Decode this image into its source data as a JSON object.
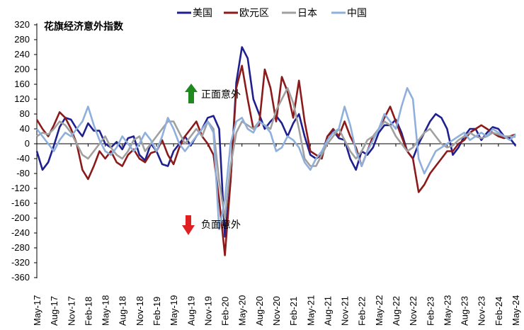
{
  "chart_data": {
    "type": "line",
    "title": "花旗经济意外指数",
    "xlabel": "",
    "ylabel": "",
    "ylim": [
      -360,
      320
    ],
    "yticks": [
      320,
      280,
      240,
      200,
      160,
      120,
      80,
      40,
      0,
      -40,
      -80,
      -120,
      -160,
      -200,
      -240,
      -280,
      -320,
      -360
    ],
    "x_tick_labels": [
      "May-17",
      "Aug-17",
      "Nov-17",
      "Feb-18",
      "May-18",
      "Aug-18",
      "Nov-18",
      "Feb-19",
      "May-19",
      "Aug-19",
      "Nov-19",
      "Feb-20",
      "May-20",
      "Aug-20",
      "Nov-20",
      "Feb-21",
      "May-21",
      "Aug-21",
      "Nov-21",
      "Feb-22",
      "May-22",
      "Aug-22",
      "Nov-22",
      "Feb-23",
      "May-23",
      "Aug-23",
      "Nov-23",
      "Feb-24",
      "May-24"
    ],
    "x_unit": "month index from May-17",
    "grid": false,
    "legend_position": "top",
    "annotations": [
      {
        "text": "正面意外",
        "arrow": "up",
        "color": "#1e8a1e"
      },
      {
        "text": "负面意外",
        "arrow": "down",
        "color": "#e02020"
      }
    ],
    "series": [
      {
        "name": "美国",
        "color": "#1f1f8f",
        "x": [
          0,
          1,
          2,
          3,
          4,
          5,
          6,
          7,
          8,
          9,
          10,
          11,
          12,
          13,
          14,
          15,
          16,
          17,
          18,
          19,
          20,
          21,
          22,
          23,
          24,
          25,
          26,
          27,
          28,
          29,
          30,
          31,
          32,
          33,
          34,
          35,
          36,
          37,
          38,
          39,
          40,
          41,
          42,
          43,
          44,
          45,
          46,
          47,
          48,
          49,
          50,
          51,
          52,
          53,
          54,
          55,
          56,
          57,
          58,
          59,
          60,
          61,
          62,
          63,
          64,
          65,
          66,
          67,
          68,
          69,
          70,
          71,
          72,
          73,
          74,
          75,
          76,
          77,
          78,
          79,
          80,
          81,
          82,
          83,
          84
        ],
        "values": [
          -20,
          -70,
          -50,
          -5,
          45,
          70,
          65,
          40,
          20,
          55,
          35,
          35,
          0,
          -10,
          5,
          -15,
          15,
          20,
          -30,
          -45,
          0,
          -20,
          -55,
          -60,
          -20,
          0,
          20,
          -5,
          20,
          40,
          70,
          75,
          40,
          -250,
          -100,
          165,
          260,
          230,
          120,
          80,
          40,
          60,
          75,
          55,
          20,
          55,
          80,
          20,
          -30,
          -40,
          -30,
          20,
          35,
          15,
          10,
          -40,
          -70,
          -20,
          -30,
          -10,
          30,
          50,
          50,
          65,
          30,
          -20,
          -40,
          0,
          30,
          60,
          80,
          70,
          40,
          -30,
          -10,
          20,
          40,
          40,
          10,
          30,
          45,
          40,
          20,
          15,
          -5
        ]
      },
      {
        "name": "欧元区",
        "color": "#8b1a1a",
        "x": [
          0,
          1,
          2,
          3,
          4,
          5,
          6,
          7,
          8,
          9,
          10,
          11,
          12,
          13,
          14,
          15,
          16,
          17,
          18,
          19,
          20,
          21,
          22,
          23,
          24,
          25,
          26,
          27,
          28,
          29,
          30,
          31,
          32,
          33,
          34,
          35,
          36,
          37,
          38,
          39,
          40,
          41,
          42,
          43,
          44,
          45,
          46,
          47,
          48,
          49,
          50,
          51,
          52,
          53,
          54,
          55,
          56,
          57,
          58,
          59,
          60,
          61,
          62,
          63,
          64,
          65,
          66,
          67,
          68,
          69,
          70,
          71,
          72,
          73,
          74,
          75,
          76,
          77,
          78,
          79,
          80,
          81,
          82,
          83,
          84
        ],
        "values": [
          65,
          40,
          20,
          50,
          85,
          70,
          40,
          0,
          -70,
          -95,
          -60,
          -20,
          -40,
          -20,
          -50,
          -60,
          -30,
          -15,
          -40,
          -50,
          -25,
          -20,
          10,
          -30,
          -55,
          -10,
          20,
          40,
          60,
          20,
          0,
          -30,
          -150,
          -300,
          -100,
          150,
          210,
          120,
          40,
          50,
          200,
          150,
          60,
          180,
          140,
          70,
          170,
          60,
          -20,
          -30,
          -40,
          20,
          40,
          20,
          60,
          20,
          -10,
          -60,
          -20,
          20,
          40,
          70,
          100,
          60,
          20,
          -20,
          -40,
          -130,
          -110,
          -80,
          -60,
          -40,
          -20,
          -20,
          0,
          10,
          30,
          40,
          50,
          40,
          30,
          20,
          15,
          20,
          25
        ]
      },
      {
        "name": "日本",
        "color": "#a0a0a0",
        "x": [
          0,
          1,
          2,
          3,
          4,
          5,
          6,
          7,
          8,
          9,
          10,
          11,
          12,
          13,
          14,
          15,
          16,
          17,
          18,
          19,
          20,
          21,
          22,
          23,
          24,
          25,
          26,
          27,
          28,
          29,
          30,
          31,
          32,
          33,
          34,
          35,
          36,
          37,
          38,
          39,
          40,
          41,
          42,
          43,
          44,
          45,
          46,
          47,
          48,
          49,
          50,
          51,
          52,
          53,
          54,
          55,
          56,
          57,
          58,
          59,
          60,
          61,
          62,
          63,
          64,
          65,
          66,
          67,
          68,
          69,
          70,
          71,
          72,
          73,
          74,
          75,
          76,
          77,
          78,
          79,
          80,
          81,
          82,
          83,
          84
        ],
        "values": [
          20,
          30,
          25,
          40,
          60,
          50,
          30,
          0,
          -30,
          -40,
          -20,
          0,
          20,
          -10,
          -30,
          -40,
          -20,
          10,
          20,
          -20,
          0,
          20,
          40,
          60,
          60,
          30,
          0,
          20,
          40,
          20,
          60,
          40,
          -100,
          -200,
          -60,
          30,
          60,
          50,
          40,
          60,
          50,
          40,
          90,
          120,
          150,
          110,
          40,
          -40,
          -60,
          -60,
          -30,
          0,
          20,
          40,
          10,
          -20,
          -40,
          -20,
          10,
          20,
          40,
          60,
          50,
          20,
          0,
          -20,
          -10,
          10,
          30,
          40,
          20,
          0,
          -10,
          -5,
          10,
          20,
          30,
          20,
          15,
          20,
          30,
          25,
          20,
          20,
          18
        ]
      },
      {
        "name": "中国",
        "color": "#8fb0dc",
        "x": [
          0,
          1,
          2,
          3,
          4,
          5,
          6,
          7,
          8,
          9,
          10,
          11,
          12,
          13,
          14,
          15,
          16,
          17,
          18,
          19,
          20,
          21,
          22,
          23,
          24,
          25,
          26,
          27,
          28,
          29,
          30,
          31,
          32,
          33,
          34,
          35,
          36,
          37,
          38,
          39,
          40,
          41,
          42,
          43,
          44,
          45,
          46,
          47,
          48,
          49,
          50,
          51,
          52,
          53,
          54,
          55,
          56,
          57,
          58,
          59,
          60,
          61,
          62,
          63,
          64,
          65,
          66,
          67,
          68,
          69,
          70,
          71,
          72,
          73,
          74,
          75,
          76,
          77,
          78,
          79,
          80,
          81,
          82,
          83,
          84
        ],
        "values": [
          40,
          20,
          0,
          -20,
          10,
          30,
          20,
          40,
          60,
          100,
          50,
          10,
          -20,
          -30,
          -10,
          20,
          0,
          -20,
          0,
          30,
          10,
          -20,
          20,
          70,
          40,
          0,
          -20,
          0,
          20,
          40,
          60,
          30,
          -230,
          -150,
          0,
          60,
          70,
          40,
          30,
          60,
          50,
          30,
          -20,
          -10,
          20,
          10,
          -10,
          -50,
          -70,
          -40,
          -20,
          10,
          30,
          40,
          100,
          50,
          -20,
          -60,
          -20,
          10,
          40,
          80,
          60,
          40,
          100,
          150,
          120,
          -40,
          -80,
          -50,
          -20,
          -10,
          0,
          10,
          20,
          30,
          10,
          20,
          30,
          20,
          40,
          30,
          20,
          10,
          25
        ]
      }
    ]
  }
}
